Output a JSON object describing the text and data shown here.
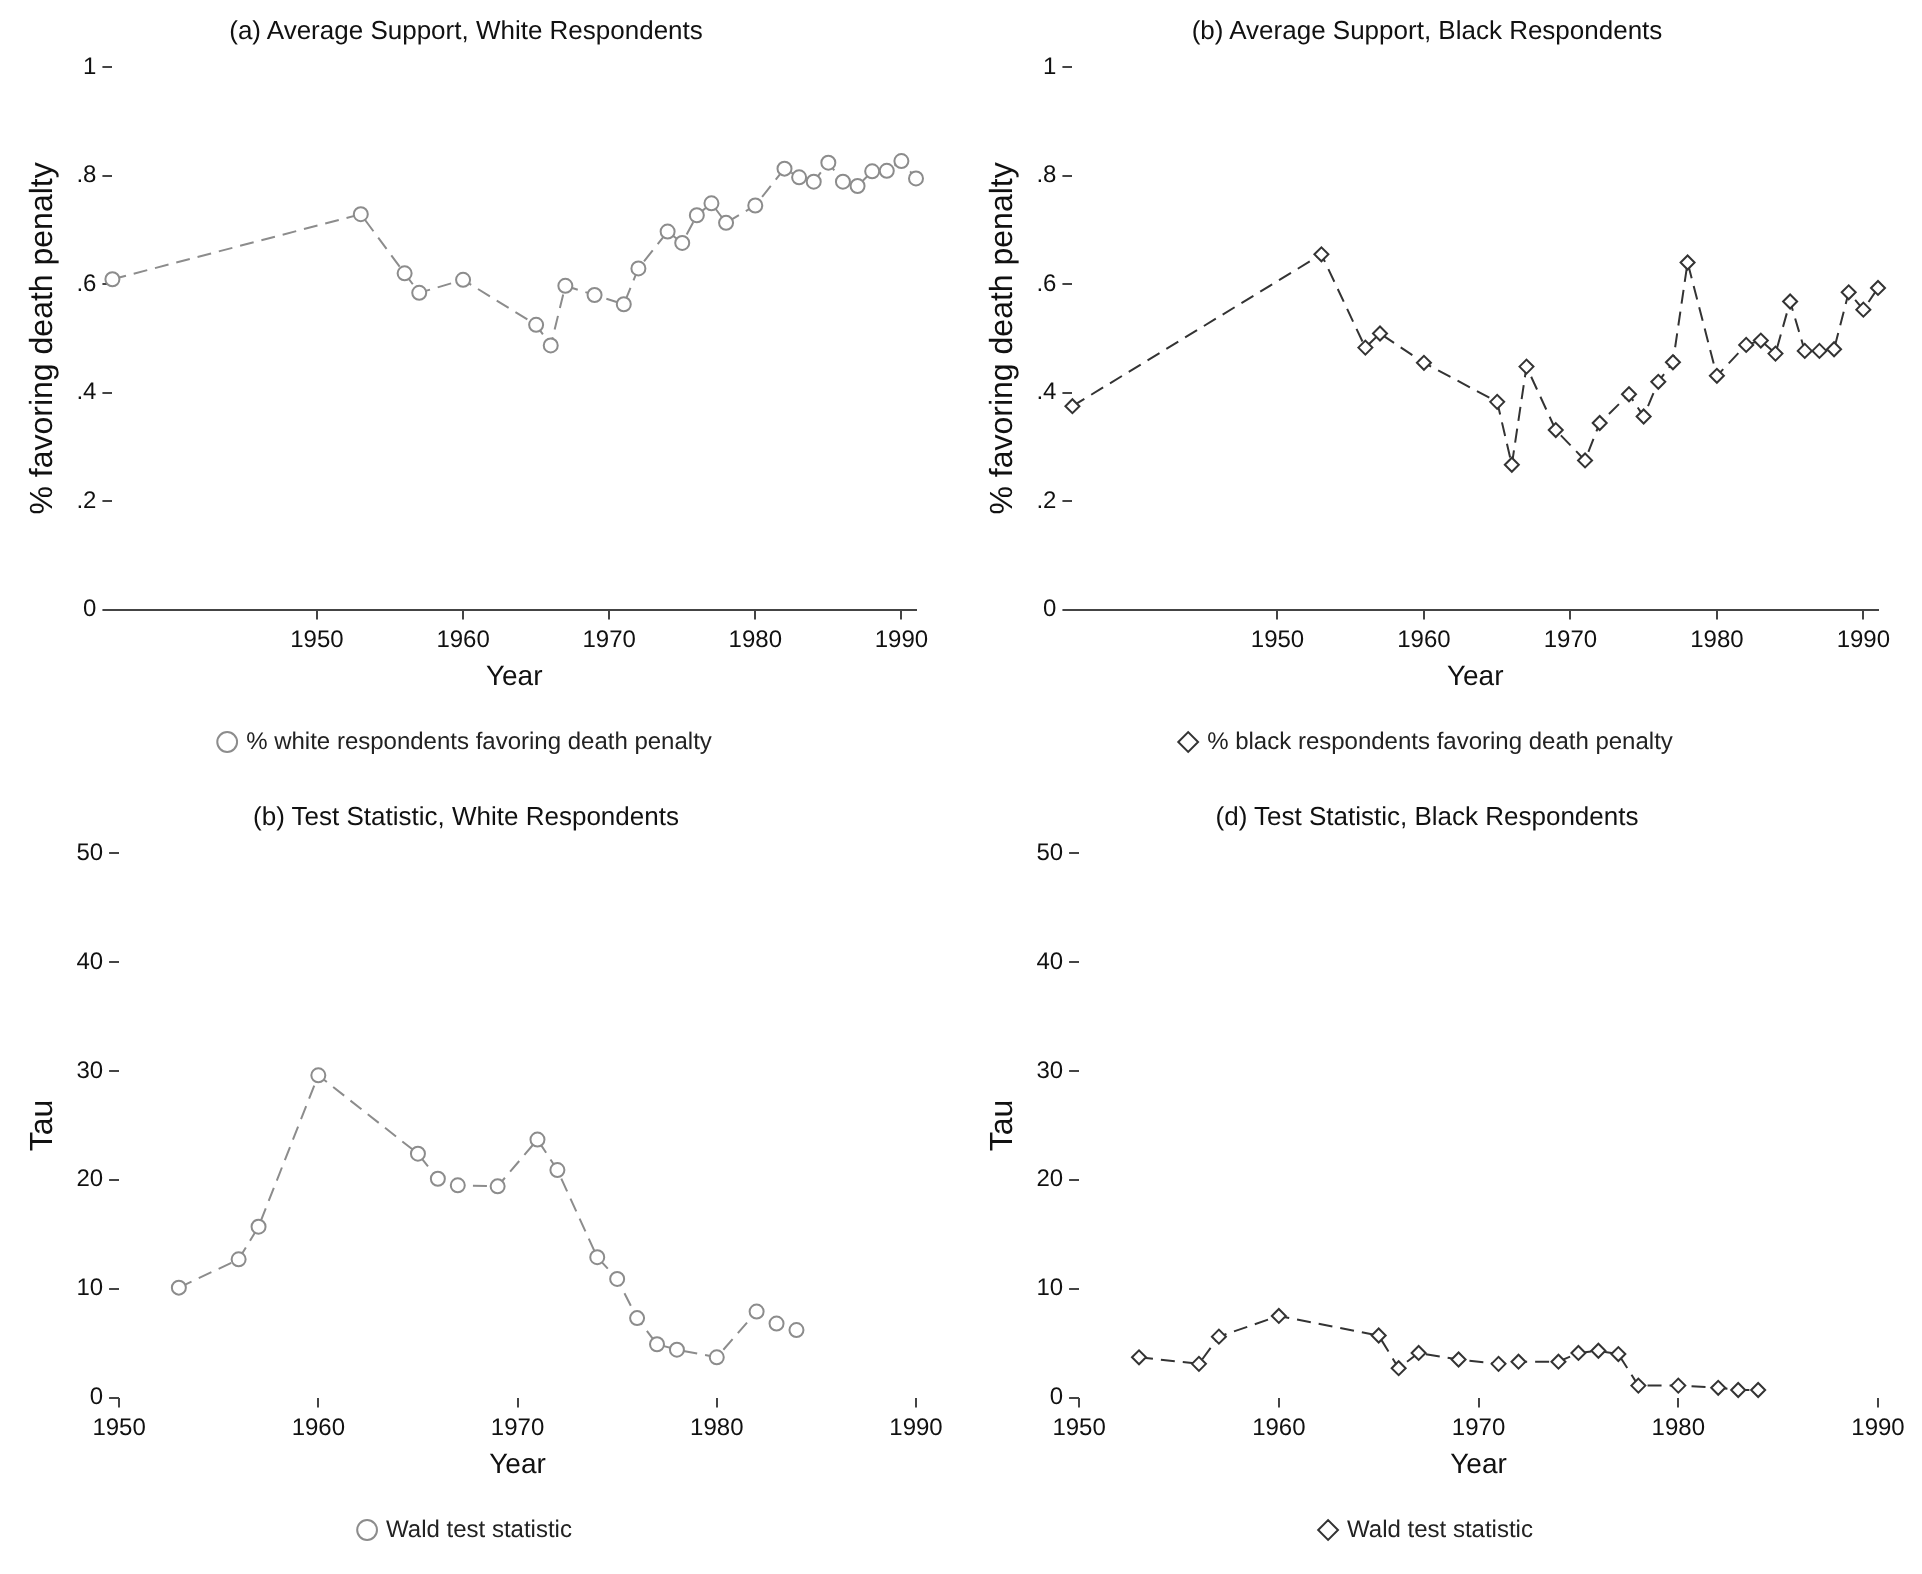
{
  "chart_data": [
    {
      "type": "line",
      "title": "(a) Average Support, White Respondents",
      "xlabel": "Year",
      "ylabel": "% favoring death penalty",
      "legend": "bottom",
      "marker": "circle",
      "line_style": "dashed",
      "grid": false,
      "x": [
        1936,
        1953,
        1956,
        1957,
        1960,
        1965,
        1966,
        1967,
        1969,
        1971,
        1972,
        1974,
        1975,
        1976,
        1977,
        1978,
        1980,
        1982,
        1983,
        1984,
        1985,
        1986,
        1987,
        1988,
        1989,
        1990,
        1991
      ],
      "series": [
        {
          "name": "% white respondents favoring death penalty",
          "color": "#8c8c8c",
          "values": [
            0.609,
            0.729,
            0.62,
            0.584,
            0.608,
            0.525,
            0.487,
            0.597,
            0.58,
            0.563,
            0.629,
            0.697,
            0.676,
            0.727,
            0.749,
            0.713,
            0.745,
            0.813,
            0.797,
            0.789,
            0.824,
            0.789,
            0.781,
            0.808,
            0.809,
            0.827,
            0.795
          ]
        }
      ],
      "xlim": [
        1936,
        1991
      ],
      "xticks": [
        1950,
        1960,
        1970,
        1980,
        1990
      ],
      "ylim": [
        0,
        1
      ],
      "yticks": [
        0,
        {
          "value": 0.2,
          "label": ".2"
        },
        {
          "value": 0.4,
          "label": ".4"
        },
        {
          "value": 0.6,
          "label": ".6"
        },
        {
          "value": 0.8,
          "label": ".8"
        },
        1
      ]
    },
    {
      "type": "line",
      "title": "(b) Average Support, Black Respondents",
      "xlabel": "Year",
      "ylabel": "% favoring death penalty",
      "legend": "bottom",
      "marker": "diamond",
      "line_style": "dashed",
      "grid": false,
      "x": [
        1936,
        1953,
        1956,
        1957,
        1960,
        1965,
        1966,
        1967,
        1969,
        1971,
        1972,
        1974,
        1975,
        1976,
        1977,
        1978,
        1980,
        1982,
        1983,
        1984,
        1985,
        1986,
        1987,
        1988,
        1989,
        1990,
        1991
      ],
      "series": [
        {
          "name": "% black respondents favoring death penalty",
          "color": "#333333",
          "values": [
            0.375,
            0.655,
            0.483,
            0.509,
            0.455,
            0.383,
            0.267,
            0.448,
            0.331,
            0.275,
            0.344,
            0.397,
            0.356,
            0.42,
            0.456,
            0.64,
            0.431,
            0.488,
            0.496,
            0.472,
            0.568,
            0.477,
            0.477,
            0.48,
            0.585,
            0.553,
            0.593
          ]
        }
      ],
      "xlim": [
        1936,
        1991
      ],
      "xticks": [
        1950,
        1960,
        1970,
        1980,
        1990
      ],
      "ylim": [
        0,
        1
      ],
      "yticks": [
        0,
        {
          "value": 0.2,
          "label": ".2"
        },
        {
          "value": 0.4,
          "label": ".4"
        },
        {
          "value": 0.6,
          "label": ".6"
        },
        {
          "value": 0.8,
          "label": ".8"
        },
        1
      ]
    },
    {
      "type": "line",
      "title": "(b) Test Statistic, White Respondents",
      "xlabel": "Year",
      "ylabel": "Tau",
      "legend": "bottom",
      "marker": "circle",
      "line_style": "dashed",
      "grid": false,
      "x": [
        1953,
        1956,
        1957,
        1960,
        1965,
        1966,
        1967,
        1969,
        1971,
        1972,
        1974,
        1975,
        1976,
        1977,
        1978,
        1980,
        1982,
        1983,
        1984
      ],
      "series": [
        {
          "name": "Wald test statistic",
          "color": "#8c8c8c",
          "values": [
            10.1,
            12.7,
            15.7,
            29.6,
            22.4,
            20.1,
            19.5,
            19.4,
            23.7,
            20.9,
            12.9,
            10.9,
            7.3,
            4.9,
            4.4,
            3.7,
            7.9,
            6.8,
            6.2
          ]
        }
      ],
      "xlim": [
        1950,
        1990
      ],
      "xticks": [
        1950,
        1960,
        1970,
        1980,
        1990
      ],
      "ylim": [
        0,
        50
      ],
      "yticks": [
        0,
        10,
        20,
        30,
        40,
        50
      ]
    },
    {
      "type": "line",
      "title": "(d) Test Statistic, Black Respondents",
      "xlabel": "Year",
      "ylabel": "Tau",
      "legend": "bottom",
      "marker": "diamond",
      "line_style": "dashed",
      "grid": false,
      "x": [
        1953,
        1956,
        1957,
        1960,
        1965,
        1966,
        1967,
        1969,
        1971,
        1972,
        1974,
        1975,
        1976,
        1977,
        1978,
        1980,
        1982,
        1983,
        1984
      ],
      "series": [
        {
          "name": "Wald test statistic",
          "color": "#333333",
          "values": [
            3.7,
            3.1,
            5.6,
            7.5,
            5.7,
            2.7,
            4.1,
            3.5,
            3.1,
            3.3,
            3.3,
            4.1,
            4.3,
            4.0,
            1.1,
            1.1,
            0.9,
            0.7,
            0.7
          ]
        }
      ],
      "xlim": [
        1950,
        1990
      ],
      "xticks": [
        1950,
        1960,
        1970,
        1980,
        1990
      ],
      "ylim": [
        0,
        50
      ],
      "yticks": [
        0,
        10,
        20,
        30,
        40,
        50
      ]
    }
  ]
}
